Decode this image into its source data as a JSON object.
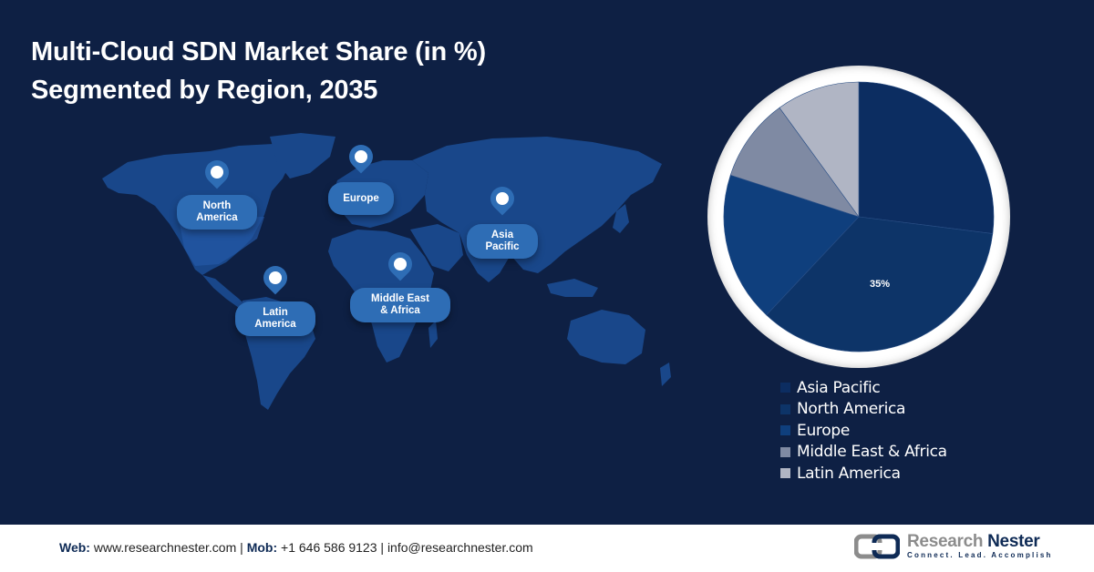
{
  "title": {
    "line1": "Multi-Cloud SDN Market Share (in %)",
    "line2": "Segmented by Region, 2035"
  },
  "map": {
    "regions": [
      {
        "name": "North America",
        "line1": "North",
        "line2": "America"
      },
      {
        "name": "Europe",
        "line1": "Europe",
        "line2": ""
      },
      {
        "name": "Asia Pacific",
        "line1": "Asia",
        "line2": "Pacific"
      },
      {
        "name": "Latin America",
        "line1": "Latin",
        "line2": "America"
      },
      {
        "name": "Middle East & Africa",
        "line1": "Middle East",
        "line2": "& Africa"
      }
    ]
  },
  "chart_data": {
    "type": "pie",
    "title": "Multi-Cloud SDN Market Share (in %) Segmented by Region, 2035",
    "categories": [
      "Asia Pacific",
      "North America",
      "Europe",
      "Middle East & Africa",
      "Latin America"
    ],
    "values": [
      27,
      35,
      18,
      10,
      10
    ],
    "colors": [
      "#0c2d61",
      "#0d3468",
      "#0f3f7d",
      "#7f8aa3",
      "#b0b5c4"
    ],
    "data_labels": [
      {
        "category": "North America",
        "label": "35%"
      }
    ],
    "start_angle_deg": 0,
    "direction": "clockwise",
    "legend_position": "bottom-right"
  },
  "legend": {
    "items": [
      {
        "label": "Asia Pacific",
        "color": "#0c2d61"
      },
      {
        "label": "North America",
        "color": "#0d3468"
      },
      {
        "label": "Europe",
        "color": "#0f3f7d"
      },
      {
        "label": "Middle East & Africa",
        "color": "#7f8aa3"
      },
      {
        "label": "Latin America",
        "color": "#b0b5c4"
      }
    ]
  },
  "pie_label": "35%",
  "footer": {
    "web_label": "Web:",
    "web_value": "www.researchnester.com",
    "sep1": "|",
    "mob_label": "Mob:",
    "mob_value": "+1 646 586 9123",
    "sep2": "|",
    "email": "info@researchnester.com",
    "logo_name_1": "Research",
    "logo_name_2": "Nester",
    "logo_tagline": "Connect. Lead. Accomplish"
  }
}
